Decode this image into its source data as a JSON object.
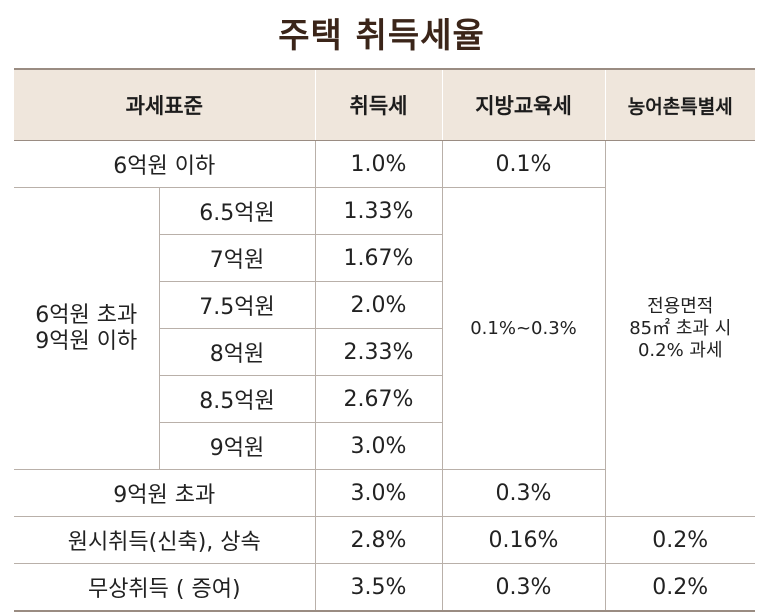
{
  "title": "주택 취득세율",
  "headers": {
    "tax_base": "과세표준",
    "acquisition_tax": "취득세",
    "local_education_tax": "지방교육세",
    "rural_special_tax": "농어촌특별세"
  },
  "rows": {
    "r1": {
      "label": "6억원 이하",
      "acq": "1.0%",
      "edu": "0.1%"
    },
    "group_label_line1": "6억원 초과",
    "group_label_line2": "9억원 이하",
    "sub": [
      {
        "label": "6.5억원",
        "acq": "1.33%"
      },
      {
        "label": "7억원",
        "acq": "1.67%"
      },
      {
        "label": "7.5억원",
        "acq": "2.0%"
      },
      {
        "label": "8억원",
        "acq": "2.33%"
      },
      {
        "label": "8.5억원",
        "acq": "2.67%"
      },
      {
        "label": "9억원",
        "acq": "3.0%"
      }
    ],
    "group_edu": "0.1%~0.3%",
    "rural_note_line1": "전용면적",
    "rural_note_line2": "85㎡ 초과 시",
    "rural_note_line3": "0.2% 과세",
    "r_over9": {
      "label": "9억원 초과",
      "acq": "3.0%",
      "edu": "0.3%"
    },
    "r_original": {
      "label": "원시취득(신축), 상속",
      "acq": "2.8%",
      "edu": "0.16%",
      "rural": "0.2%"
    },
    "r_gift": {
      "label": "무상취득 ( 증여)",
      "acq": "3.5%",
      "edu": "0.3%",
      "rural": "0.2%"
    }
  }
}
